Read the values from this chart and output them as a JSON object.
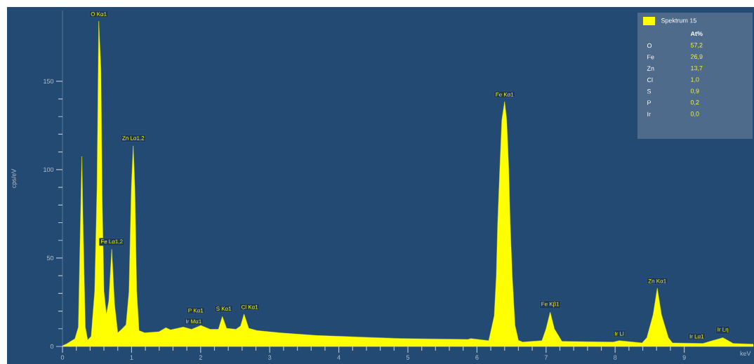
{
  "chart_data": {
    "type": "area",
    "xlabel": "keV",
    "ylabel": "cps/eV",
    "xlim": [
      0,
      10
    ],
    "ylim": [
      0,
      190
    ],
    "xticks": [
      0,
      1,
      2,
      3,
      4,
      5,
      6,
      7,
      8,
      9
    ],
    "yticks": [
      0,
      50,
      100,
      150
    ],
    "legend": "top right",
    "grid": false,
    "x": [
      0,
      0.06,
      0.18,
      0.23,
      0.257,
      0.28,
      0.3,
      0.33,
      0.365,
      0.415,
      0.466,
      0.5,
      0.525,
      0.557,
      0.574,
      0.6,
      0.635,
      0.67,
      0.713,
      0.753,
      0.8,
      0.855,
      0.92,
      0.963,
      0.997,
      1.024,
      1.047,
      1.074,
      1.108,
      1.19,
      1.395,
      1.497,
      1.564,
      1.75,
      1.868,
      2.003,
      2.138,
      2.257,
      2.314,
      2.375,
      2.51,
      2.578,
      2.628,
      2.696,
      2.814,
      3.15,
      3.68,
      4.9,
      5.87,
      5.91,
      6.17,
      6.25,
      6.28,
      6.3,
      6.33,
      6.36,
      6.4,
      6.43,
      6.46,
      6.48,
      6.51,
      6.55,
      6.6,
      6.66,
      6.94,
      7.0,
      7.06,
      7.12,
      7.23,
      7.97,
      8.06,
      8.39,
      8.46,
      8.55,
      8.61,
      8.67,
      8.77,
      8.83,
      9.27,
      9.56,
      9.71,
      10.0
    ],
    "series": [
      {
        "name": "Spektrum 15",
        "color": "#ffff00",
        "values": [
          0.4,
          1.5,
          4.4,
          11,
          64,
          107.5,
          64,
          11,
          3.7,
          5.7,
          31,
          90,
          184,
          156,
          84,
          31,
          18,
          25.5,
          55,
          24,
          7.7,
          9.7,
          12.3,
          31,
          90,
          113.5,
          90,
          31,
          9,
          7.7,
          8.3,
          10.6,
          9.4,
          11,
          9.7,
          11.9,
          9.7,
          9.7,
          17,
          10.3,
          9.7,
          11.6,
          18.3,
          10.3,
          9,
          7.7,
          6.2,
          4.5,
          4.0,
          4.5,
          3.3,
          17.3,
          40,
          70,
          100,
          128,
          138.5,
          128,
          100,
          70,
          40,
          12,
          3.5,
          2.5,
          3.3,
          10,
          19.4,
          10,
          2.9,
          2.5,
          3.3,
          2.0,
          5.1,
          18,
          33,
          18,
          5.1,
          2.0,
          1.7,
          5,
          1.7,
          1.3
        ]
      }
    ],
    "annotations": [
      {
        "text": "O Kα1",
        "x": 0.525,
        "y": 184
      },
      {
        "text": "Fe Lα1,2",
        "x": 0.713,
        "y": 55
      },
      {
        "text": "Zn Lα1,2",
        "x": 1.024,
        "y": 113.5
      },
      {
        "text": "Ir Mα1",
        "x": 1.98,
        "y": 11
      },
      {
        "text": "P Kα1",
        "x": 2.01,
        "y": 12
      },
      {
        "text": "S Kα1",
        "x": 2.314,
        "y": 17
      },
      {
        "text": "Cl Kα1",
        "x": 2.628,
        "y": 18.3
      },
      {
        "text": "Fe Kα1",
        "x": 6.4,
        "y": 138.5
      },
      {
        "text": "Fe Kβ1",
        "x": 7.06,
        "y": 19.4
      },
      {
        "text": "Ir Ll",
        "x": 8.06,
        "y": 3.3
      },
      {
        "text": "Zn Kα1",
        "x": 8.61,
        "y": 33
      },
      {
        "text": "Ir Lα1",
        "x": 9.18,
        "y": 1.7
      },
      {
        "text": "Ir Lη",
        "x": 9.56,
        "y": 5
      },
      "At%",
      "O",
      "57,2",
      "Fe",
      "26,9",
      "Zn",
      "13,7",
      "Cl",
      "1,0",
      "S",
      "0,9",
      "P",
      "0,2",
      "Ir",
      "0,0"
    ]
  }
}
